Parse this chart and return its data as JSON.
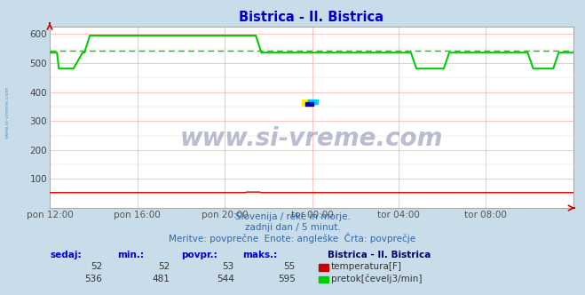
{
  "title": "Bistrica - Il. Bistrica",
  "title_color": "#0000cc",
  "bg_color": "#c8dcea",
  "plot_bg_color": "#ffffff",
  "grid_color": "#ffaaaa",
  "grid_color2": "#ffcccc",
  "x_tick_labels": [
    "pon 12:00",
    "pon 16:00",
    "pon 20:00",
    "tor 00:00",
    "tor 04:00",
    "tor 08:00"
  ],
  "x_tick_pos_frac": [
    0.0,
    0.1667,
    0.3333,
    0.5,
    0.6667,
    0.8333
  ],
  "y_ticks": [
    100,
    200,
    300,
    400,
    500,
    600
  ],
  "ylim": [
    0,
    626
  ],
  "n_points": 288,
  "temp_color": "#cc0000",
  "flow_color": "#00cc00",
  "avg_flow": 544,
  "watermark_text": "www.si-vreme.com",
  "watermark_color": "#1a2a6a",
  "watermark_alpha": 0.3,
  "subtitle1": "Slovenija / reke in morje.",
  "subtitle2": "zadnji dan / 5 minut.",
  "subtitle3": "Meritve: povprečne  Enote: angleške  Črta: povprečje",
  "subtitle_color": "#3366aa",
  "legend_title": "Bistrica - Il. Bistrica",
  "legend_title_color": "#000066",
  "stat_headers": [
    "sedaj:",
    "min.:",
    "povpr.:",
    "maks.:"
  ],
  "stat_color": "#0000cc",
  "temp_stats": [
    52,
    52,
    53,
    55
  ],
  "flow_stats": [
    536,
    481,
    544,
    595
  ],
  "temp_label": "temperatura[F]",
  "flow_label": "pretok[čevelj3/min]",
  "left_label": "www.si-vreme.com",
  "left_label_color": "#5588aa",
  "arrow_color": "#cc0000",
  "spine_color": "#aaaaaa"
}
